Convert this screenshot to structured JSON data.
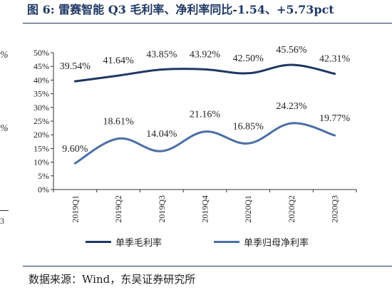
{
  "header": {
    "title": "图 6: 雷赛智能 Q3 毛利率、净利率同比-1.54、+5.73pct"
  },
  "edge_fragments": [
    "%",
    "%",
    "3"
  ],
  "source": "数据来源：Wind，东吴证券研究所",
  "chart_data": {
    "type": "line",
    "categories": [
      "2019Q1",
      "2019Q2",
      "2019Q3",
      "2019Q4",
      "2020Q1",
      "2020Q2",
      "2020Q3"
    ],
    "series": [
      {
        "name": "单季毛利率",
        "color": "#1f3864",
        "values": [
          39.54,
          41.64,
          43.85,
          43.92,
          42.5,
          45.56,
          42.31
        ],
        "labels": [
          "39.54%",
          "41.64%",
          "43.85%",
          "43.92%",
          "42.50%",
          "45.56%",
          "42.31%"
        ]
      },
      {
        "name": "单季归母净利率",
        "color": "#4a6fa5",
        "values": [
          9.6,
          18.61,
          14.04,
          21.16,
          16.85,
          24.23,
          19.77
        ],
        "labels": [
          "9.60%",
          "18.61%",
          "14.04%",
          "21.16%",
          "16.85%",
          "24.23%",
          "19.77%"
        ]
      }
    ],
    "yticks": [
      "0%",
      "5%",
      "10%",
      "15%",
      "20%",
      "25%",
      "30%",
      "35%",
      "40%",
      "45%",
      "50%"
    ],
    "ylim": [
      0,
      50
    ],
    "grid": false,
    "legend": "bottom"
  }
}
